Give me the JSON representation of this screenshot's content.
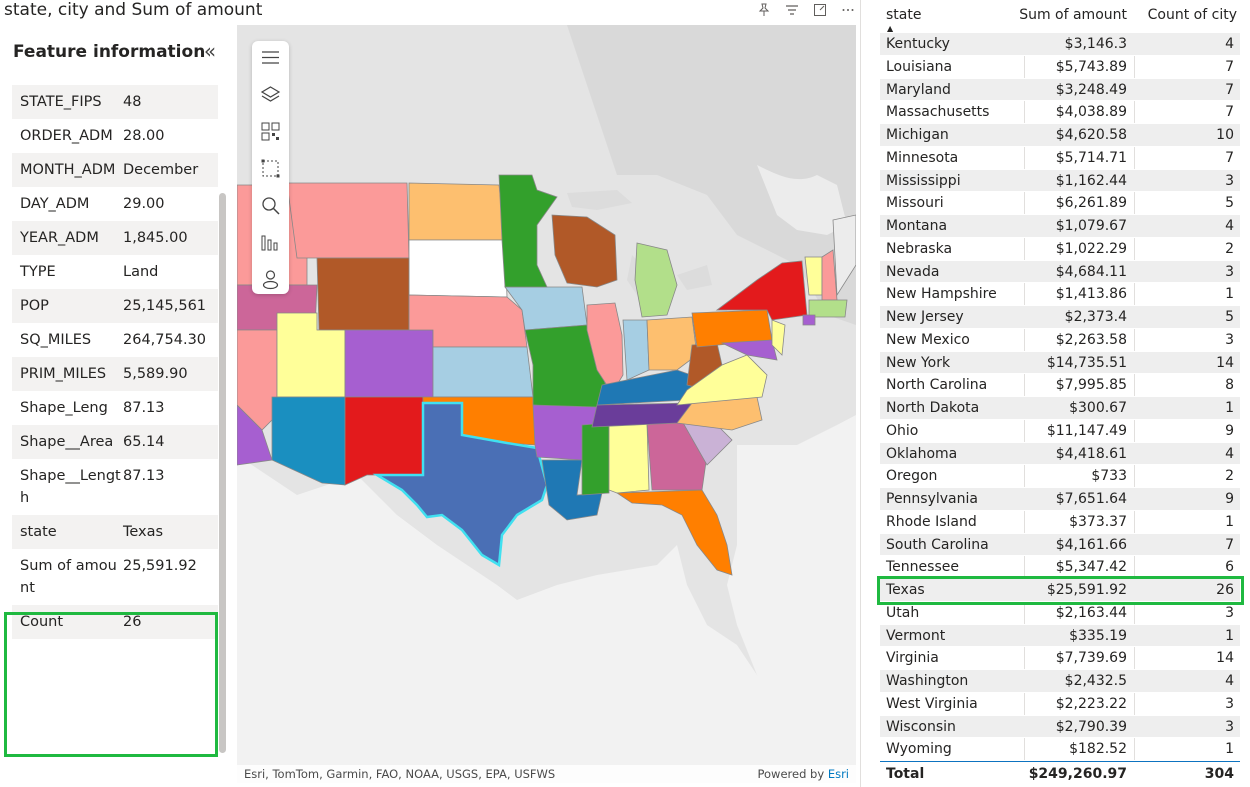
{
  "visual": {
    "title": "state, city and Sum of amount",
    "header_icons": [
      "pin-icon",
      "filter-icon",
      "focus-mode-icon",
      "more-options-icon"
    ]
  },
  "feature_panel": {
    "title": "Feature information",
    "collapse_icon": "double-chevron-left-icon",
    "rows": [
      {
        "key": "STATE_FIPS",
        "value": "48"
      },
      {
        "key": "ORDER_ADM",
        "value": "28.00"
      },
      {
        "key": "MONTH_ADM",
        "value": "December"
      },
      {
        "key": "DAY_ADM",
        "value": "29.00"
      },
      {
        "key": "YEAR_ADM",
        "value": "1,845.00"
      },
      {
        "key": "TYPE",
        "value": "Land"
      },
      {
        "key": "POP",
        "value": "25,145,561"
      },
      {
        "key": "SQ_MILES",
        "value": "264,754.30"
      },
      {
        "key": "PRIM_MILES",
        "value": "5,589.90"
      },
      {
        "key": "Shape_Leng",
        "value": "87.13"
      },
      {
        "key": "Shape__Area",
        "value": "65.14"
      },
      {
        "key": "Shape__Length",
        "value": "87.13"
      },
      {
        "key": "state",
        "value": "Texas"
      },
      {
        "key": "Sum of amount",
        "value": "25,591.92"
      },
      {
        "key": "Count",
        "value": "26"
      }
    ]
  },
  "map": {
    "toolbar": [
      "menu-icon",
      "layers-icon",
      "qr-select-icon",
      "rectangle-select-icon",
      "search-icon",
      "chart-icon",
      "person-icon"
    ],
    "attribution": "Esri, TomTom, Garmin, FAO, NOAA, USGS, EPA, USFWS",
    "powered_by": "Powered by",
    "powered_by_brand": "Esri",
    "selected_state": "Texas",
    "selection_color": "#40e0f0"
  },
  "table": {
    "columns": [
      "state",
      "Sum of amount",
      "Count of city"
    ],
    "sorted_column": "state",
    "rows": [
      [
        "Kentucky",
        "$3,146.3",
        "4"
      ],
      [
        "Louisiana",
        "$5,743.89",
        "7"
      ],
      [
        "Maryland",
        "$3,248.49",
        "7"
      ],
      [
        "Massachusetts",
        "$4,038.89",
        "7"
      ],
      [
        "Michigan",
        "$4,620.58",
        "10"
      ],
      [
        "Minnesota",
        "$5,714.71",
        "7"
      ],
      [
        "Mississippi",
        "$1,162.44",
        "3"
      ],
      [
        "Missouri",
        "$6,261.89",
        "5"
      ],
      [
        "Montana",
        "$1,079.67",
        "4"
      ],
      [
        "Nebraska",
        "$1,022.29",
        "2"
      ],
      [
        "Nevada",
        "$4,684.11",
        "3"
      ],
      [
        "New Hampshire",
        "$1,413.86",
        "1"
      ],
      [
        "New Jersey",
        "$2,373.4",
        "5"
      ],
      [
        "New Mexico",
        "$2,263.58",
        "3"
      ],
      [
        "New York",
        "$14,735.51",
        "14"
      ],
      [
        "North Carolina",
        "$7,995.85",
        "8"
      ],
      [
        "North Dakota",
        "$300.67",
        "1"
      ],
      [
        "Ohio",
        "$11,147.49",
        "9"
      ],
      [
        "Oklahoma",
        "$4,418.61",
        "4"
      ],
      [
        "Oregon",
        "$733",
        "2"
      ],
      [
        "Pennsylvania",
        "$7,651.64",
        "9"
      ],
      [
        "Rhode Island",
        "$373.37",
        "1"
      ],
      [
        "South Carolina",
        "$4,161.66",
        "7"
      ],
      [
        "Tennessee",
        "$5,347.42",
        "6"
      ],
      [
        "Texas",
        "$25,591.92",
        "26"
      ],
      [
        "Utah",
        "$2,163.44",
        "3"
      ],
      [
        "Vermont",
        "$335.19",
        "1"
      ],
      [
        "Virginia",
        "$7,739.69",
        "14"
      ],
      [
        "Washington",
        "$2,432.5",
        "4"
      ],
      [
        "West Virginia",
        "$2,223.22",
        "3"
      ],
      [
        "Wisconsin",
        "$2,790.39",
        "3"
      ],
      [
        "Wyoming",
        "$182.52",
        "1"
      ]
    ],
    "total": {
      "label": "Total",
      "sum": "$249,260.97",
      "count": "304"
    },
    "highlight_color": "#1fb940"
  }
}
